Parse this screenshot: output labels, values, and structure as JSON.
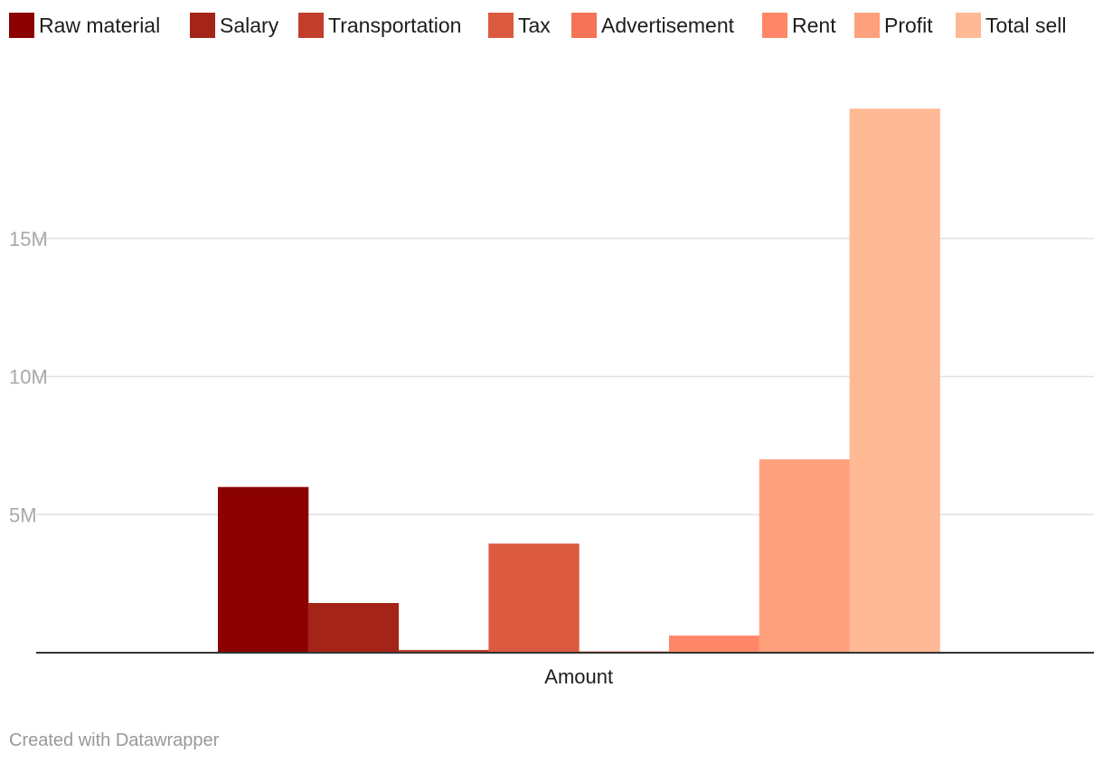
{
  "chart_data": {
    "type": "bar",
    "categories": [
      "Amount"
    ],
    "series": [
      {
        "name": "Raw material",
        "values": [
          6000000
        ],
        "color": "#8b0000"
      },
      {
        "name": "Salary",
        "values": [
          1800000
        ],
        "color": "#a42417"
      },
      {
        "name": "Transportation",
        "values": [
          100000
        ],
        "color": "#c13d2c"
      },
      {
        "name": "Tax",
        "values": [
          3950000
        ],
        "color": "#dc5a40"
      },
      {
        "name": "Advertisement",
        "values": [
          50000
        ],
        "color": "#f57356"
      },
      {
        "name": "Rent",
        "values": [
          620000
        ],
        "color": "#ff8767"
      },
      {
        "name": "Profit",
        "values": [
          7000000
        ],
        "color": "#ffa07c"
      },
      {
        "name": "Total sell",
        "values": [
          19700000
        ],
        "color": "#ffb995"
      }
    ],
    "ylim": [
      0,
      20000000
    ],
    "yticks": [
      {
        "value": 5000000,
        "label": "5M"
      },
      {
        "value": 10000000,
        "label": "10M"
      },
      {
        "value": 15000000,
        "label": "15M"
      }
    ],
    "grid": true,
    "legend_position": "top-left",
    "title": "",
    "xlabel": "",
    "ylabel": ""
  },
  "footer": {
    "credit": "Created with Datawrapper"
  }
}
